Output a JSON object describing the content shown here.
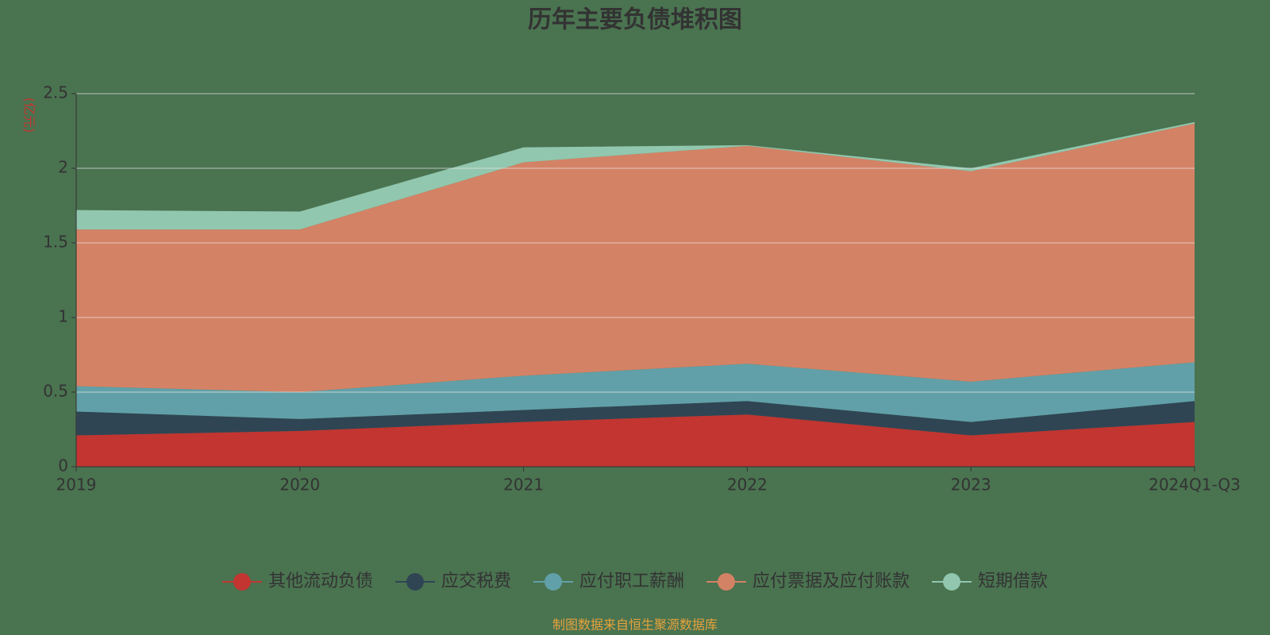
{
  "chart_data": {
    "type": "stacked_area",
    "title": "历年主要负债堆积图",
    "y_label": "(亿元)",
    "source": "制图数据来自恒生聚源数据库",
    "categories": [
      "2019",
      "2020",
      "2021",
      "2022",
      "2023",
      "2024Q1-Q3"
    ],
    "ylim": [
      0,
      2.5
    ],
    "yticks": [
      0,
      0.5,
      1,
      1.5,
      2,
      2.5
    ],
    "grid": true,
    "legend": "bottom",
    "series": [
      {
        "name": "其他流动负债",
        "color": "#c23531",
        "values": [
          0.21,
          0.24,
          0.3,
          0.35,
          0.21,
          0.3
        ]
      },
      {
        "name": "应交税费",
        "color": "#2f4554",
        "values": [
          0.16,
          0.08,
          0.08,
          0.09,
          0.09,
          0.14
        ]
      },
      {
        "name": "应付职工薪酬",
        "color": "#61a0a8",
        "values": [
          0.17,
          0.18,
          0.23,
          0.25,
          0.27,
          0.26
        ]
      },
      {
        "name": "应付票据及应付账款",
        "color": "#d48265",
        "values": [
          1.05,
          1.09,
          1.43,
          1.46,
          1.41,
          1.6
        ]
      },
      {
        "name": "短期借款",
        "color": "#91c7ae",
        "values": [
          0.13,
          0.12,
          0.1,
          0.005,
          0.02,
          0.01
        ]
      }
    ]
  }
}
